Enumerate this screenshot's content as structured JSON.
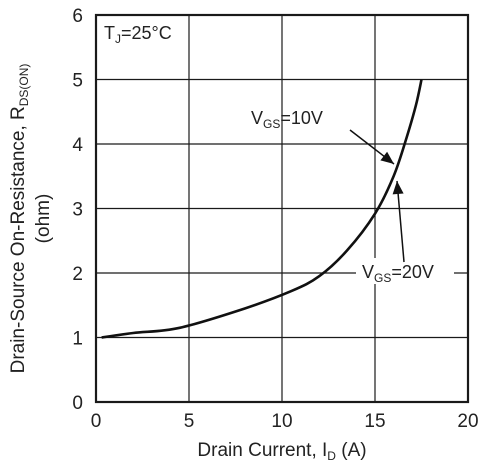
{
  "chart_data": {
    "type": "line",
    "xlabel": {
      "main": "Drain Current, I",
      "sub": "D",
      "unit": " (A)"
    },
    "ylabel": {
      "line1_main": "Drain-Source On-Resistance, R",
      "line1_sub": "DS(ON)",
      "line2": "(ohm)"
    },
    "xlim": [
      0,
      20
    ],
    "ylim": [
      0,
      6
    ],
    "x_ticks": [
      "0",
      "5",
      "10",
      "15",
      "20"
    ],
    "y_ticks": [
      "0",
      "1",
      "2",
      "3",
      "4",
      "5",
      "6"
    ],
    "grid": true,
    "condition": {
      "main": "T",
      "sub": "J",
      "rest": "=25°C"
    },
    "series": [
      {
        "x": [
          0.3,
          2,
          4.5,
          8,
          10.5,
          12,
          13.5,
          15,
          16,
          16.7,
          17.2,
          17.5
        ],
        "y": [
          1.0,
          1.07,
          1.15,
          1.45,
          1.72,
          1.95,
          2.35,
          2.92,
          3.5,
          4.1,
          4.6,
          5.0
        ]
      }
    ],
    "annotations": [
      {
        "main": "V",
        "sub": "GS",
        "rest": "=10V"
      },
      {
        "main": "V",
        "sub": "GS",
        "rest": "=20V"
      }
    ]
  }
}
